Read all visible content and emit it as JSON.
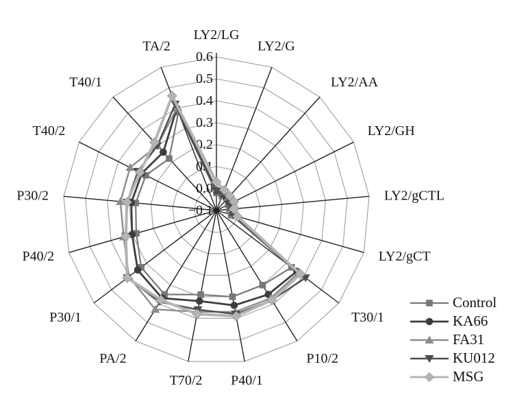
{
  "figure": {
    "background": "#ffffff",
    "text_color": "#141414"
  },
  "chart_data": {
    "type": "radar",
    "title": "",
    "categories": [
      "LY2/LG",
      "LY2/G",
      "LY2/AA",
      "LY2/GH",
      "LY2/gCTL",
      "LY2/gCT",
      "T30/1",
      "P10/2",
      "P40/1",
      "T70/2",
      "PA/2",
      "P30/1",
      "P40/2",
      "P30/2",
      "T40/2",
      "T40/1",
      "TA/2"
    ],
    "radial_axis": {
      "min": -0.1,
      "max": 0.6,
      "step": 0.1,
      "tick_labels": [
        "0.6",
        "0.5",
        "0.4",
        "0.3",
        "0.2",
        "0.1",
        "0.0",
        "−0.1"
      ]
    },
    "grid": {
      "rings": 7,
      "ring_color": "#9d9d9d",
      "spoke_color": "#1f1f1f",
      "grid_on": true
    },
    "legend_position": "right-bottom",
    "series": [
      {
        "name": "Control",
        "marker": "square",
        "color": "#787878",
        "line_width": 2.2,
        "values": [
          -0.02,
          -0.03,
          -0.03,
          -0.04,
          -0.04,
          -0.03,
          0.33,
          0.3,
          0.3,
          0.29,
          0.35,
          0.33,
          0.28,
          0.27,
          0.26,
          0.22,
          0.38
        ]
      },
      {
        "name": "KA66",
        "marker": "circle",
        "color": "#3d3d3d",
        "line_width": 2.8,
        "values": [
          -0.01,
          -0.02,
          -0.03,
          -0.03,
          -0.03,
          -0.02,
          0.36,
          0.35,
          0.34,
          0.32,
          0.37,
          0.35,
          0.3,
          0.29,
          0.28,
          0.26,
          0.4
        ]
      },
      {
        "name": "FA31",
        "marker": "triangle-up",
        "color": "#8c8c8c",
        "line_width": 2.4,
        "values": [
          0.0,
          -0.01,
          -0.02,
          -0.02,
          -0.03,
          -0.02,
          0.37,
          0.37,
          0.37,
          0.37,
          0.43,
          0.4,
          0.34,
          0.34,
          0.34,
          0.3,
          0.4
        ]
      },
      {
        "name": "KU012",
        "marker": "triangle-down",
        "color": "#4e4e4e",
        "line_width": 2.4,
        "values": [
          -0.01,
          -0.02,
          -0.02,
          -0.03,
          -0.03,
          -0.02,
          0.41,
          0.38,
          0.38,
          0.36,
          0.39,
          0.41,
          0.33,
          0.31,
          0.3,
          0.3,
          0.42
        ]
      },
      {
        "name": "MSG",
        "marker": "diamond",
        "color": "#b4b4b4",
        "line_width": 4,
        "values": [
          0.03,
          0.0,
          -0.01,
          -0.01,
          -0.02,
          0.0,
          0.38,
          0.38,
          0.39,
          0.38,
          0.38,
          0.41,
          0.33,
          0.31,
          0.29,
          0.32,
          0.46
        ]
      }
    ]
  }
}
